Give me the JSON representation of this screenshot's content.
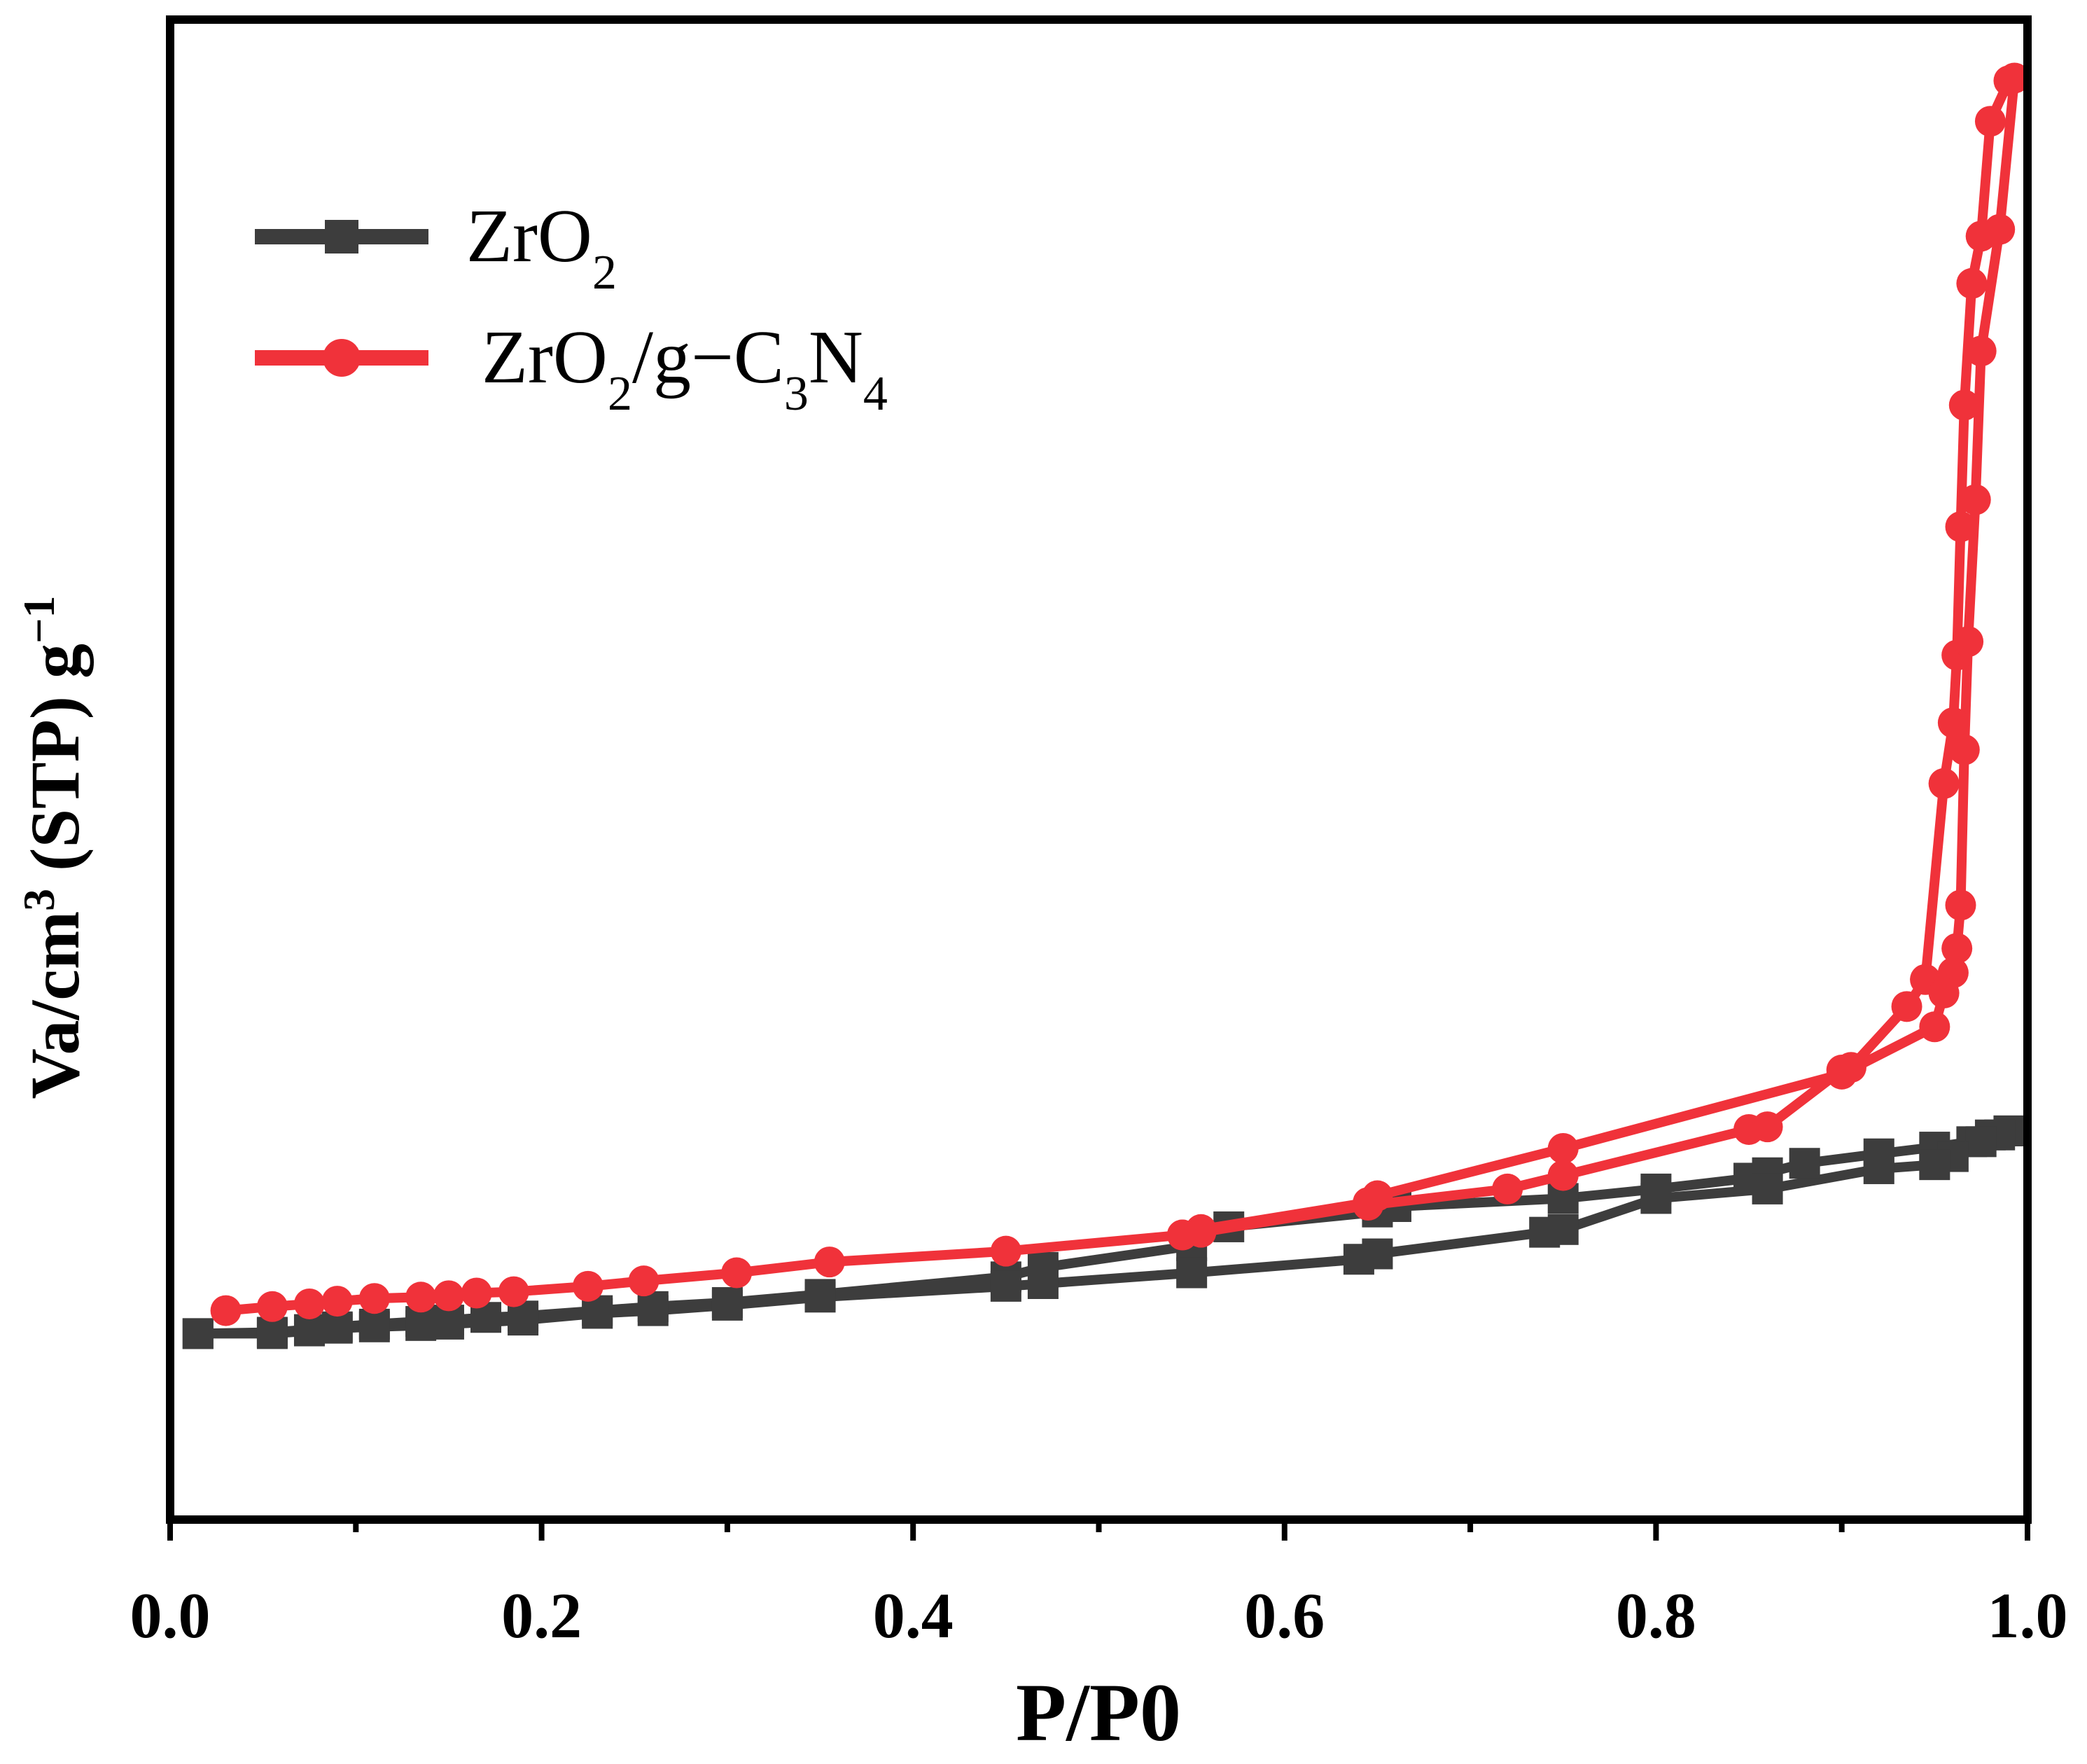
{
  "chart_data": {
    "type": "line",
    "title": "",
    "xlabel": "P/P0",
    "ylabel": "Va/cm3 (STP) g-1",
    "ylabel_parts": {
      "main": "Va/cm",
      "sup": "3",
      "rest": " (STP) g",
      "sup2": "−1"
    },
    "xlim": [
      0.0,
      1.0
    ],
    "ylim": [
      0,
      100
    ],
    "x_ticks": [
      "0.0",
      "0.2",
      "0.4",
      "0.6",
      "0.8",
      "1.0"
    ],
    "x_tick_values": [
      0.0,
      0.2,
      0.4,
      0.6,
      0.8,
      1.0
    ],
    "y_tick_labels_shown": false,
    "legend_position": "top-left",
    "series": [
      {
        "name": "ZrO2",
        "legend_parts": {
          "a": "ZrO",
          "sub1": "2"
        },
        "color": "#3d3d3d",
        "marker": "square",
        "x": [
          0.015,
          0.055,
          0.075,
          0.09,
          0.11,
          0.135,
          0.15,
          0.17,
          0.19,
          0.23,
          0.26,
          0.3,
          0.35,
          0.45,
          0.47,
          0.55,
          0.57,
          0.65,
          0.66,
          0.75,
          0.8,
          0.85,
          0.86,
          0.88,
          0.92,
          0.95,
          0.97,
          0.98,
          0.99,
          0.99,
          0.985,
          0.975,
          0.96,
          0.95,
          0.92,
          0.86,
          0.8,
          0.75,
          0.74,
          0.65,
          0.64,
          0.55,
          0.47,
          0.45,
          0.35,
          0.3,
          0.26,
          0.23,
          0.19,
          0.15,
          0.135,
          0.11,
          0.09,
          0.075,
          0.055,
          0.015
        ],
        "y": [
          6.3,
          6.4,
          6.6,
          6.8,
          7.0,
          7.2,
          7.3,
          7.5,
          7.6,
          8.0,
          8.3,
          8.6,
          9.2,
          10.5,
          11.2,
          12.8,
          14.2,
          15.3,
          15.7,
          16.3,
          17.0,
          17.8,
          18.2,
          18.9,
          19.6,
          20.1,
          20.5,
          21.0,
          21.3,
          21.3,
          21.0,
          20.5,
          19.4,
          18.8,
          18.5,
          17.0,
          16.3,
          14.0,
          13.8,
          12.2,
          11.8,
          10.8,
          10.0,
          9.8,
          9.0,
          8.4,
          8.0,
          7.8,
          7.3,
          7.0,
          6.9,
          6.8,
          6.7,
          6.5,
          6.3,
          6.3
        ]
      },
      {
        "name": "ZrO2/g−C3N4",
        "legend_parts": {
          "a": "ZrO",
          "sub1": "2",
          "b": "/g−C",
          "sub2": "3",
          "c": "N",
          "sub3": "4"
        },
        "color": "#f0323a",
        "marker": "circle",
        "x": [
          0.03,
          0.055,
          0.075,
          0.09,
          0.11,
          0.135,
          0.15,
          0.165,
          0.185,
          0.225,
          0.255,
          0.305,
          0.355,
          0.45,
          0.545,
          0.555,
          0.645,
          0.72,
          0.75,
          0.85,
          0.86,
          0.9,
          0.905,
          0.935,
          0.945,
          0.955,
          0.96,
          0.962,
          0.964,
          0.966,
          0.97,
          0.975,
          0.98,
          0.99,
          0.993,
          0.985,
          0.975,
          0.972,
          0.968,
          0.966,
          0.964,
          0.962,
          0.96,
          0.955,
          0.95,
          0.9,
          0.75,
          0.65,
          0.645,
          0.555,
          0.545
        ],
        "y": [
          8.0,
          8.3,
          8.5,
          8.7,
          8.9,
          9.0,
          9.1,
          9.3,
          9.4,
          9.8,
          10.2,
          10.8,
          11.6,
          12.4,
          13.6,
          13.8,
          15.8,
          17.0,
          18.0,
          21.4,
          21.6,
          25.8,
          26.0,
          30.5,
          32.5,
          47.0,
          51.5,
          56.5,
          66.0,
          75.0,
          84.0,
          87.5,
          96.0,
          99.0,
          99.2,
          88.0,
          79.0,
          68.0,
          57.5,
          49.5,
          38.0,
          34.8,
          33.0,
          31.5,
          29.0,
          25.5,
          20.0,
          16.5,
          16.0,
          14.0,
          13.6
        ]
      }
    ]
  }
}
